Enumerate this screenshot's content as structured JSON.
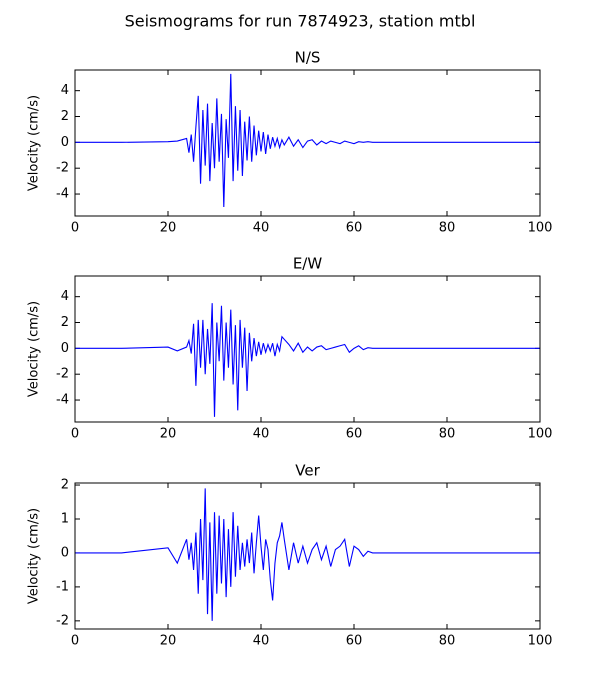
{
  "title": "Seismograms for run 7874923, station mtbl",
  "chart_data": [
    {
      "type": "line",
      "title": "N/S",
      "ylabel": "Velocity (cm/s)",
      "color": "#0000ff",
      "xlim": [
        0,
        100
      ],
      "xticks": [
        0,
        20,
        40,
        60,
        80,
        100
      ],
      "ylim": [
        -5.7,
        5.6
      ],
      "yticks": [
        -4,
        -2,
        0,
        2,
        4
      ],
      "x": [
        0,
        10,
        20,
        22,
        24,
        24.5,
        25,
        25.5,
        26,
        26.5,
        27,
        27.5,
        28,
        28.5,
        29,
        29.5,
        30,
        30.5,
        31,
        31.5,
        32,
        32.5,
        33,
        33.5,
        34,
        34.5,
        35,
        35.5,
        36,
        36.5,
        37,
        37.5,
        38,
        38.5,
        39,
        39.5,
        40,
        40.5,
        41,
        41.5,
        42,
        42.5,
        43,
        43.5,
        44,
        44.5,
        45,
        46,
        47,
        48,
        49,
        50,
        51,
        52,
        53,
        54,
        55,
        56,
        57,
        58,
        59,
        60,
        61,
        62,
        63,
        64,
        65,
        66,
        67,
        68,
        69,
        70,
        80,
        100
      ],
      "values": [
        0,
        0,
        0.05,
        0.1,
        0.3,
        -0.8,
        0.6,
        -1.5,
        1.2,
        3.6,
        -3.2,
        2.5,
        -1.8,
        3.0,
        -3.0,
        1.5,
        -2.0,
        3.4,
        -1.5,
        2.2,
        -5.0,
        1.8,
        -1.2,
        5.3,
        -3.0,
        2.8,
        -2.2,
        2.5,
        -2.6,
        1.6,
        -1.4,
        2.0,
        -1.5,
        1.3,
        -1.0,
        0.9,
        -0.7,
        0.8,
        -0.9,
        0.6,
        -0.5,
        0.4,
        -0.3,
        0.3,
        -0.4,
        0.2,
        -0.2,
        0.4,
        -0.3,
        0.2,
        -0.4,
        0.1,
        0.2,
        -0.2,
        0.1,
        -0.1,
        0.1,
        0,
        -0.1,
        0.1,
        0,
        -0.1,
        0.05,
        0,
        0.05,
        0,
        0,
        0,
        0,
        0,
        0,
        0,
        0,
        0
      ]
    },
    {
      "type": "line",
      "title": "E/W",
      "ylabel": "Velocity (cm/s)",
      "color": "#0000ff",
      "xlim": [
        0,
        100
      ],
      "xticks": [
        0,
        20,
        40,
        60,
        80,
        100
      ],
      "ylim": [
        -5.7,
        5.6
      ],
      "yticks": [
        -4,
        -2,
        0,
        2,
        4
      ],
      "x": [
        0,
        10,
        20,
        22,
        24,
        24.5,
        25,
        25.5,
        26,
        26.5,
        27,
        27.5,
        28,
        28.5,
        29,
        29.5,
        30,
        30.5,
        31,
        31.5,
        32,
        32.5,
        33,
        33.5,
        34,
        34.5,
        35,
        35.5,
        36,
        36.5,
        37,
        37.5,
        38,
        38.5,
        39,
        39.5,
        40,
        40.5,
        41,
        41.5,
        42,
        42.5,
        43,
        43.5,
        44,
        44.5,
        45,
        46,
        47,
        48,
        49,
        50,
        51,
        52,
        53,
        54,
        55,
        56,
        57,
        58,
        59,
        60,
        61,
        62,
        63,
        64,
        65,
        66,
        67,
        68,
        69,
        70,
        80,
        100
      ],
      "values": [
        0,
        0,
        0.1,
        -0.2,
        0.1,
        0.6,
        -0.4,
        1.9,
        -2.9,
        2.2,
        -1.5,
        2.2,
        -2.0,
        1.5,
        -1.2,
        3.5,
        -5.3,
        2.0,
        -1.0,
        3.3,
        -2.5,
        2.0,
        -1.5,
        3.0,
        -2.8,
        1.8,
        -4.8,
        2.2,
        -1.5,
        1.6,
        -3.3,
        1.2,
        -1.0,
        0.8,
        -0.6,
        0.5,
        -0.5,
        0.4,
        -0.3,
        0.3,
        -0.2,
        0.4,
        -0.6,
        0.3,
        -0.2,
        0.9,
        0.7,
        0.3,
        -0.2,
        0.4,
        -0.3,
        0.1,
        -0.2,
        0.1,
        0.2,
        -0.1,
        0,
        0.1,
        0.2,
        0.3,
        -0.3,
        0,
        0.2,
        -0.1,
        0.05,
        0,
        0,
        0,
        0,
        0,
        0,
        0,
        0,
        0
      ]
    },
    {
      "type": "line",
      "title": "Ver",
      "ylabel": "Velocity (cm/s)",
      "color": "#0000ff",
      "xlim": [
        0,
        100
      ],
      "xticks": [
        0,
        20,
        40,
        60,
        80,
        100
      ],
      "ylim": [
        -2.24,
        2.06
      ],
      "yticks": [
        -2,
        -1,
        0,
        1,
        2
      ],
      "x": [
        0,
        10,
        20,
        22,
        24,
        24.5,
        25,
        25.5,
        26,
        26.5,
        27,
        27.5,
        28,
        28.5,
        29,
        29.5,
        30,
        30.5,
        31,
        31.5,
        32,
        32.5,
        33,
        33.5,
        34,
        34.5,
        35,
        35.5,
        36,
        36.5,
        37,
        37.5,
        38,
        38.5,
        39,
        39.5,
        40,
        40.5,
        41,
        41.5,
        42,
        42.5,
        43,
        43.5,
        44,
        44.5,
        45,
        46,
        47,
        48,
        49,
        50,
        51,
        52,
        53,
        54,
        55,
        56,
        57,
        58,
        59,
        60,
        61,
        62,
        63,
        64,
        65,
        66,
        67,
        68,
        69,
        70,
        80,
        100
      ],
      "values": [
        0,
        0,
        0.15,
        -0.3,
        0.4,
        -0.2,
        0.3,
        -0.5,
        0.6,
        -1.2,
        1.0,
        -0.8,
        1.9,
        -1.8,
        0.9,
        -2.0,
        1.2,
        -1.2,
        1.1,
        -0.9,
        1.0,
        -1.3,
        0.7,
        -1.0,
        1.2,
        -0.7,
        0.8,
        -0.5,
        0.3,
        -0.4,
        0.4,
        -0.3,
        0.6,
        -0.6,
        0.3,
        1.1,
        0.2,
        -0.5,
        0.4,
        0.1,
        -0.8,
        -1.4,
        -0.3,
        0.3,
        0.5,
        0.9,
        0.4,
        -0.5,
        0.3,
        -0.3,
        0.2,
        -0.3,
        0.1,
        0.3,
        -0.2,
        0.2,
        -0.4,
        0.1,
        0.2,
        0.4,
        -0.4,
        0.2,
        0.1,
        -0.1,
        0.05,
        0,
        0,
        0,
        0,
        0,
        0,
        0,
        0,
        0
      ]
    }
  ]
}
